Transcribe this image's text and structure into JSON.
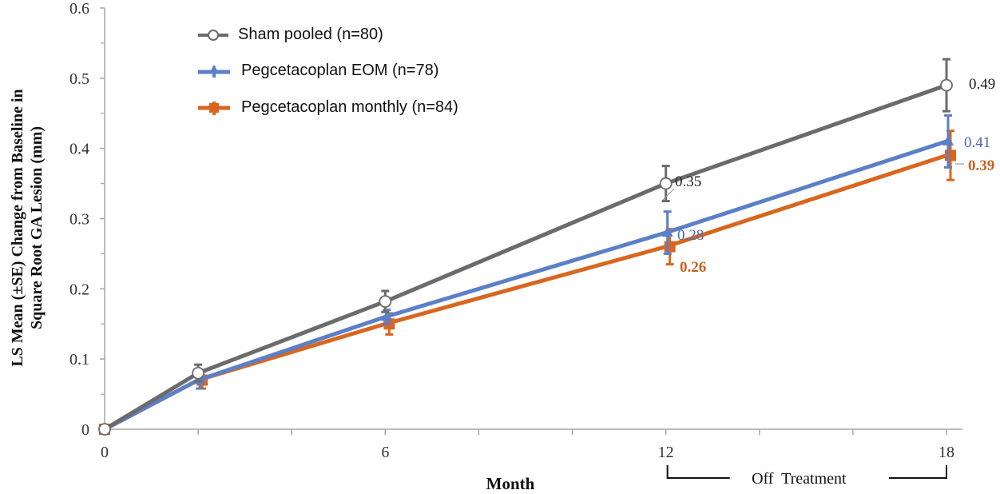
{
  "chart_data": {
    "type": "line",
    "title": "",
    "xlabel": "Month",
    "ylabel": "LS Mean (±SE) Change from Baseline in Square Root GA Lesion (mm)",
    "ylabel_lines": [
      "LS Mean (±SE) Change from Baseline in",
      "Square Root GA Lesion (mm)"
    ],
    "xlim": [
      0,
      18
    ],
    "ylim": [
      0,
      0.6
    ],
    "x_ticks": [
      0,
      6,
      12,
      18
    ],
    "x_minor_ticks": [
      2,
      4,
      8,
      10,
      14,
      16
    ],
    "y_ticks": [
      0,
      0.1,
      0.2,
      0.3,
      0.4,
      0.5,
      0.6
    ],
    "y_tick_labels": [
      "0",
      "0.1",
      "0.2",
      "0.3",
      "0.4",
      "0.5",
      "0.6"
    ],
    "grid": false,
    "legend_position": "top-left",
    "x": [
      0,
      2,
      6,
      12,
      18
    ],
    "series": [
      {
        "name": "Sham pooled (n=80)",
        "color": "#6b6b6b",
        "marker": "open-circle",
        "values": [
          0,
          0.08,
          0.182,
          0.35,
          0.49
        ],
        "se": [
          0,
          0.012,
          0.015,
          0.025,
          0.037
        ],
        "data_labels": [
          {
            "x": 12,
            "text": "0.35"
          },
          {
            "x": 18,
            "text": "0.49"
          }
        ],
        "label_color": "#222222"
      },
      {
        "name": "Pegcetacoplan EOM (n=78)",
        "color": "#5b7fc8",
        "marker": "triangle",
        "values": [
          0,
          0.07,
          0.16,
          0.28,
          0.41
        ],
        "se": [
          0,
          0.012,
          0.01,
          0.03,
          0.037
        ],
        "data_labels": [
          {
            "x": 12,
            "text": "0.28"
          },
          {
            "x": 18,
            "text": "0.41"
          }
        ],
        "label_color": "#4a6aae"
      },
      {
        "name": "Pegcetacoplan monthly (n=84)",
        "color": "#d9661f",
        "marker": "square",
        "values": [
          0,
          0.07,
          0.15,
          0.26,
          0.39
        ],
        "se": [
          0,
          0.012,
          0.015,
          0.025,
          0.035
        ],
        "data_labels": [
          {
            "x": 12,
            "text": "0.26"
          },
          {
            "x": 18,
            "text": "0.39"
          }
        ],
        "label_color": "#c8601f",
        "label_bold": true
      }
    ],
    "annotations": [
      {
        "text": "Off  Treatment",
        "x_range": [
          12,
          18
        ],
        "type": "bracket-below-axis"
      }
    ]
  }
}
